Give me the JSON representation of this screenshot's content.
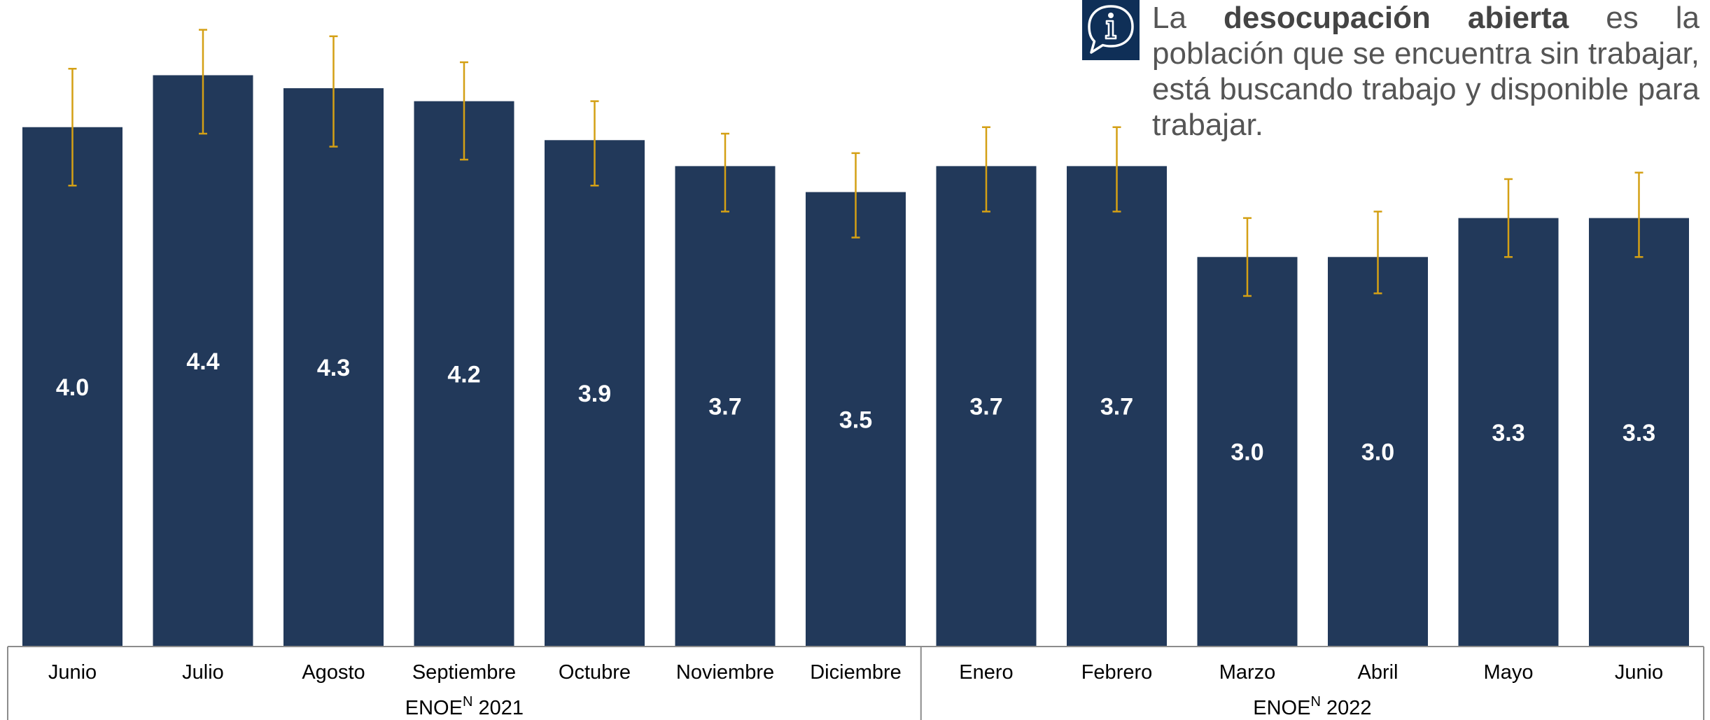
{
  "chart_data": {
    "type": "bar",
    "categories": [
      "Junio",
      "Julio",
      "Agosto",
      "Septiembre",
      "Octubre",
      "Noviembre",
      "Diciembre",
      "Enero",
      "Febrero",
      "Marzo",
      "Abril",
      "Mayo",
      "Junio"
    ],
    "values": [
      4.0,
      4.4,
      4.3,
      4.2,
      3.9,
      3.7,
      3.5,
      3.7,
      3.7,
      3.0,
      3.0,
      3.3,
      3.3
    ],
    "data_labels": [
      "4.0",
      "4.4",
      "4.3",
      "4.2",
      "3.9",
      "3.7",
      "3.5",
      "3.7",
      "3.7",
      "3.0",
      "3.0",
      "3.3",
      "3.3"
    ],
    "error_low": [
      3.55,
      3.95,
      3.85,
      3.75,
      3.55,
      3.35,
      3.15,
      3.35,
      3.35,
      2.7,
      2.72,
      3.0,
      3.0
    ],
    "error_high": [
      4.45,
      4.75,
      4.7,
      4.5,
      4.2,
      3.95,
      3.8,
      4.0,
      4.0,
      3.3,
      3.35,
      3.6,
      3.65
    ],
    "groups": [
      {
        "name": "ENOE",
        "superscript": "N",
        "year": "2021",
        "count": 7
      },
      {
        "name": "ENOE",
        "superscript": "N",
        "year": "2022",
        "count": 6
      }
    ],
    "ylim": [
      0,
      4.85
    ],
    "grid": false,
    "bar_color": "#22395a",
    "error_color": "#d4a015",
    "label_color": "#ffffff"
  },
  "note": {
    "prefix": "La ",
    "term": "desocupación abierta",
    "suffix": " es la población que se encuentra sin trabajar, está buscando trabajo y disponible para trabajar.",
    "icon": "info-speech-bubble-icon",
    "icon_color": "#0f2f57"
  }
}
